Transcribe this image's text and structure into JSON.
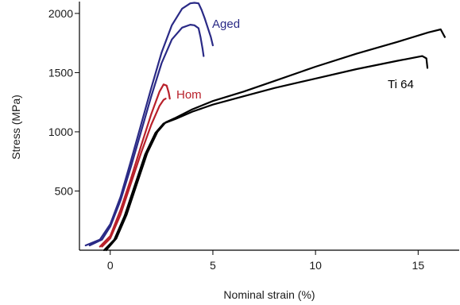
{
  "chart_data": {
    "type": "line",
    "title": "",
    "xlabel": "Nominal strain (%)",
    "ylabel": "Stress (MPa)",
    "xlim": [
      -1.5,
      17
    ],
    "ylim": [
      0,
      2100
    ],
    "xticks": [
      0,
      5,
      10,
      15
    ],
    "yticks": [
      500,
      1000,
      1500,
      2000
    ],
    "grid": false,
    "legend": "none",
    "colors": {
      "aged": "#2a2a86",
      "hom": "#b8202a",
      "ti64": "#000000"
    },
    "annotations": [
      {
        "text": "Aged",
        "series_group": "aged"
      },
      {
        "text": "Hom",
        "series_group": "hom"
      },
      {
        "text": "Ti 64",
        "series_group": "ti64"
      }
    ],
    "series": [
      {
        "group": "aged",
        "x": [
          -1.2,
          -0.5,
          0.0,
          0.5,
          1.0,
          1.5,
          2.0,
          2.5,
          3.0,
          3.5,
          3.9,
          4.1,
          4.3,
          4.45,
          4.6,
          4.75,
          4.9,
          5.0
        ],
        "y": [
          40,
          90,
          220,
          450,
          750,
          1060,
          1370,
          1670,
          1900,
          2040,
          2085,
          2090,
          2085,
          2030,
          1960,
          1880,
          1800,
          1730
        ]
      },
      {
        "group": "aged",
        "x": [
          -1.0,
          -0.4,
          0.0,
          0.5,
          1.0,
          1.5,
          2.0,
          2.5,
          3.0,
          3.5,
          3.9,
          4.1,
          4.3,
          4.4,
          4.5,
          4.55
        ],
        "y": [
          40,
          90,
          200,
          420,
          700,
          1000,
          1300,
          1580,
          1780,
          1880,
          1905,
          1900,
          1875,
          1800,
          1700,
          1640
        ]
      },
      {
        "group": "hom",
        "x": [
          -0.5,
          0.0,
          0.5,
          1.0,
          1.5,
          2.0,
          2.4,
          2.6,
          2.75,
          2.85,
          2.9
        ],
        "y": [
          30,
          120,
          340,
          600,
          880,
          1150,
          1340,
          1400,
          1390,
          1330,
          1280
        ]
      },
      {
        "group": "hom",
        "x": [
          -0.4,
          0.0,
          0.5,
          1.0,
          1.5,
          2.0,
          2.4,
          2.6,
          2.7
        ],
        "y": [
          30,
          100,
          300,
          560,
          820,
          1060,
          1220,
          1270,
          1280
        ]
      },
      {
        "group": "ti64",
        "x": [
          -0.2,
          0.3,
          0.8,
          1.3,
          1.8,
          2.3,
          2.7,
          3.2,
          4.0,
          5.0,
          6.5,
          8.0,
          10.0,
          12.0,
          14.0,
          15.5,
          16.1,
          16.3
        ],
        "y": [
          0,
          100,
          300,
          560,
          820,
          1000,
          1080,
          1120,
          1190,
          1260,
          1340,
          1430,
          1550,
          1660,
          1760,
          1840,
          1865,
          1800
        ]
      },
      {
        "group": "ti64",
        "x": [
          -0.3,
          0.2,
          0.7,
          1.2,
          1.7,
          2.2,
          2.6,
          3.2,
          4.0,
          5.0,
          6.5,
          8.0,
          10.0,
          12.0,
          14.0,
          15.2,
          15.4,
          15.45
        ],
        "y": [
          0,
          90,
          290,
          550,
          810,
          990,
          1070,
          1110,
          1170,
          1230,
          1300,
          1370,
          1450,
          1530,
          1600,
          1640,
          1620,
          1540
        ]
      }
    ]
  }
}
